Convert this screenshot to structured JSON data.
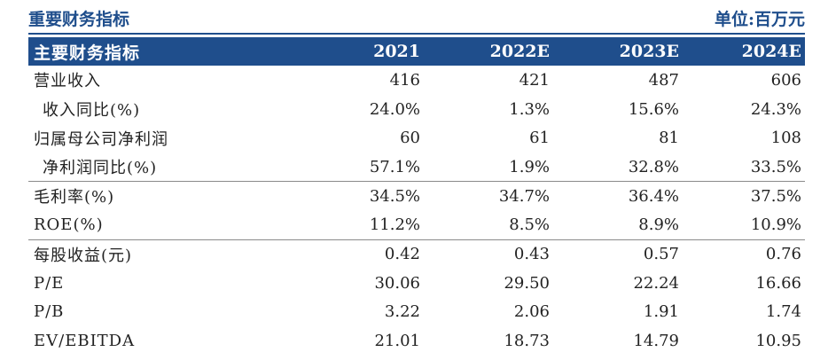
{
  "caption": {
    "title": "重要财务指标",
    "unit": "单位:百万元"
  },
  "table": {
    "headers": [
      "主要财务指标",
      "2021",
      "2022E",
      "2023E",
      "2024E"
    ],
    "rows": [
      {
        "label": "营业收入",
        "values": [
          "416",
          "421",
          "487",
          "606"
        ]
      },
      {
        "label": "收入同比(%)",
        "values": [
          "24.0%",
          "1.3%",
          "15.6%",
          "24.3%"
        ]
      },
      {
        "label": "归属母公司净利润",
        "values": [
          "60",
          "61",
          "81",
          "108"
        ]
      },
      {
        "label": "净利润同比(%)",
        "values": [
          "57.1%",
          "1.9%",
          "32.8%",
          "33.5%"
        ]
      },
      {
        "label": "毛利率(%)",
        "values": [
          "34.5%",
          "34.7%",
          "36.4%",
          "37.5%"
        ]
      },
      {
        "label": "ROE(%)",
        "values": [
          "11.2%",
          "8.5%",
          "8.9%",
          "10.9%"
        ]
      },
      {
        "label": "每股收益(元)",
        "values": [
          "0.42",
          "0.43",
          "0.57",
          "0.76"
        ]
      },
      {
        "label": "P/E",
        "values": [
          "30.06",
          "29.50",
          "22.24",
          "16.66"
        ]
      },
      {
        "label": "P/B",
        "values": [
          "3.22",
          "2.06",
          "1.91",
          "1.74"
        ]
      },
      {
        "label": "EV/EBITDA",
        "values": [
          "21.01",
          "18.73",
          "14.79",
          "10.95"
        ]
      }
    ]
  }
}
